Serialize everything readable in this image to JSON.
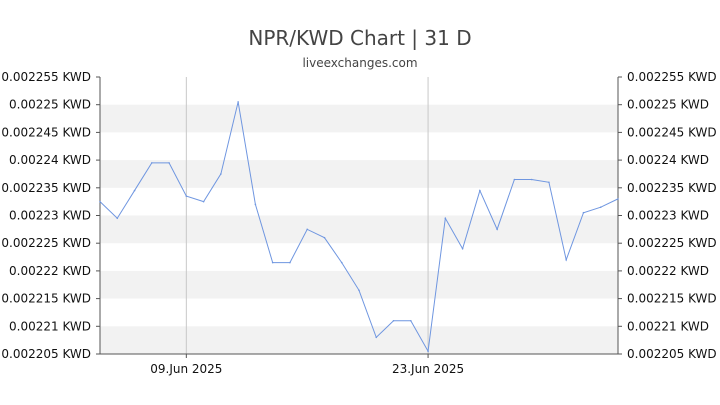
{
  "chart": {
    "title": "NPR/KWD Chart | 31 D",
    "source": "liveexchanges.com"
  },
  "colors": {
    "line": "#6f96e0",
    "band": "#f2f2f2",
    "axis": "#555555",
    "vline": "#c8c8c8"
  },
  "chart_data": {
    "type": "line",
    "title": "NPR/KWD Chart | 31 D",
    "xlabel": "",
    "ylabel": "",
    "ylim": [
      0.002205,
      0.002255
    ],
    "grid": "alternating horizontal bands",
    "y_ticks": [
      "0.002255 KWD",
      "0.00225 KWD",
      "0.002245 KWD",
      "0.00224 KWD",
      "0.002235 KWD",
      "0.00223 KWD",
      "0.002225 KWD",
      "0.00222 KWD",
      "0.002215 KWD",
      "0.00221 KWD",
      "0.002205 KWD"
    ],
    "y_tick_values": [
      0.002255,
      0.00225,
      0.002245,
      0.00224,
      0.002235,
      0.00223,
      0.002225,
      0.00222,
      0.002215,
      0.00221,
      0.002205
    ],
    "x_ticks": [
      {
        "label": "09.Jun 2025",
        "index": 5
      },
      {
        "label": "23.Jun 2025",
        "index": 19
      }
    ],
    "series": [
      {
        "values": [
          0.0022325,
          0.0022295,
          0.0022345,
          0.0022395,
          0.0022395,
          0.0022335,
          0.0022325,
          0.0022375,
          0.0022505,
          0.002232,
          0.0022215,
          0.0022215,
          0.0022275,
          0.002226,
          0.0022215,
          0.0022165,
          0.002208,
          0.002211,
          0.002211,
          0.0022055,
          0.0022295,
          0.002224,
          0.0022345,
          0.0022275,
          0.0022365,
          0.0022365,
          0.002236,
          0.002222,
          0.0022305,
          0.0022315,
          0.002233
        ]
      }
    ]
  }
}
